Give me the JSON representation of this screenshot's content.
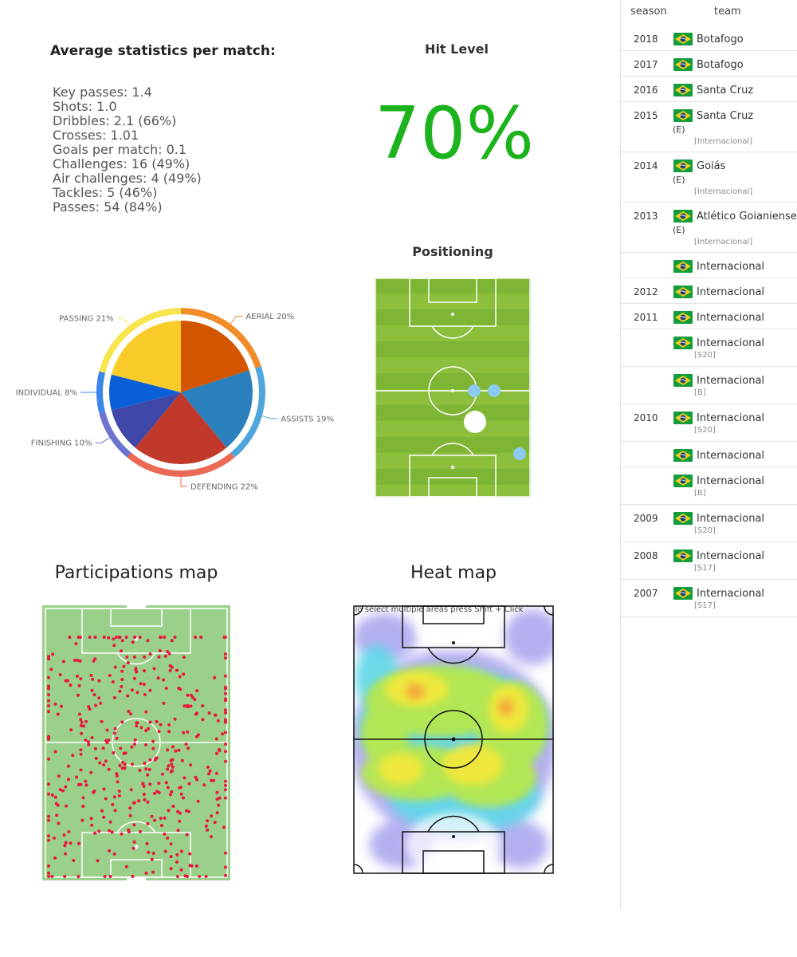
{
  "stats": {
    "title": "Average statistics per match:",
    "items": [
      "Key passes: 1.4",
      "Shots: 1.0",
      "Dribbles: 2.1 (66%)",
      "Crosses: 1.01",
      "Goals per match: 0.1",
      "Challenges: 16 (49%)",
      "Air challenges: 4 (49%)",
      "Tackles: 5 (46%)",
      "Passes: 54 (84%)"
    ]
  },
  "hit_level": {
    "title": "Hit Level",
    "value": "70%",
    "color": "#1db31d"
  },
  "positioning": {
    "title": "Positioning"
  },
  "maps": {
    "participations_title": "Participations map",
    "heat_title": "Heat map",
    "heat_hint": "To select multiple areas press Shift + Click"
  },
  "chart_data": {
    "type": "pie",
    "title": "",
    "slices": [
      {
        "label": "AERIAL 20%",
        "value": 20,
        "color": "#d45500",
        "ring": "#f28c28"
      },
      {
        "label": "ASSISTS 19%",
        "value": 19,
        "color": "#2a7fbd",
        "ring": "#4fa6dc"
      },
      {
        "label": "DEFENDING 22%",
        "value": 22,
        "color": "#c0392b",
        "ring": "#ea6a55"
      },
      {
        "label": "FINISHING 10%",
        "value": 10,
        "color": "#3f48a8",
        "ring": "#6c74d0"
      },
      {
        "label": "INDIVIDUAL 8%",
        "value": 8,
        "color": "#0a5fd8",
        "ring": "#3c86ea"
      },
      {
        "label": "PASSING 21%",
        "value": 21,
        "color": "#f9cc2a",
        "ring": "#f7e550"
      }
    ]
  },
  "career": {
    "headers": {
      "season": "season",
      "team": "team"
    },
    "flag_colors": {
      "green": "#139c3c",
      "yellow": "#f5d215",
      "blue": "#1b3f8a"
    },
    "rows": [
      {
        "season": "2018",
        "team": "Botafogo",
        "mark": "",
        "sub": ""
      },
      {
        "season": "2017",
        "team": "Botafogo",
        "mark": "",
        "sub": ""
      },
      {
        "season": "2016",
        "team": "Santa Cruz",
        "mark": "",
        "sub": ""
      },
      {
        "season": "2015",
        "team": "Santa Cruz",
        "mark": "(E)",
        "sub": "[Internacional]"
      },
      {
        "season": "2014",
        "team": "Goiás",
        "mark": "(E)",
        "sub": "[Internacional]"
      },
      {
        "season": "2013",
        "team": "Atlético Goianiense",
        "mark": "(E)",
        "sub": "[Internacional]"
      },
      {
        "season": "",
        "team": "Internacional",
        "mark": "",
        "sub": ""
      },
      {
        "season": "2012",
        "team": "Internacional",
        "mark": "",
        "sub": ""
      },
      {
        "season": "2011",
        "team": "Internacional",
        "mark": "",
        "sub": ""
      },
      {
        "season": "",
        "team": "Internacional",
        "mark": "",
        "sub": "[S20]"
      },
      {
        "season": "",
        "team": "Internacional",
        "mark": "",
        "sub": "[B]"
      },
      {
        "season": "2010",
        "team": "Internacional",
        "mark": "",
        "sub": "[S20]"
      },
      {
        "season": "",
        "team": "Internacional",
        "mark": "",
        "sub": ""
      },
      {
        "season": "",
        "team": "Internacional",
        "mark": "",
        "sub": "[B]"
      },
      {
        "season": "2009",
        "team": "Internacional",
        "mark": "",
        "sub": "[S20]"
      },
      {
        "season": "2008",
        "team": "Internacional",
        "mark": "",
        "sub": "[S17]"
      },
      {
        "season": "2007",
        "team": "Internacional",
        "mark": "",
        "sub": "[S17]"
      }
    ]
  }
}
